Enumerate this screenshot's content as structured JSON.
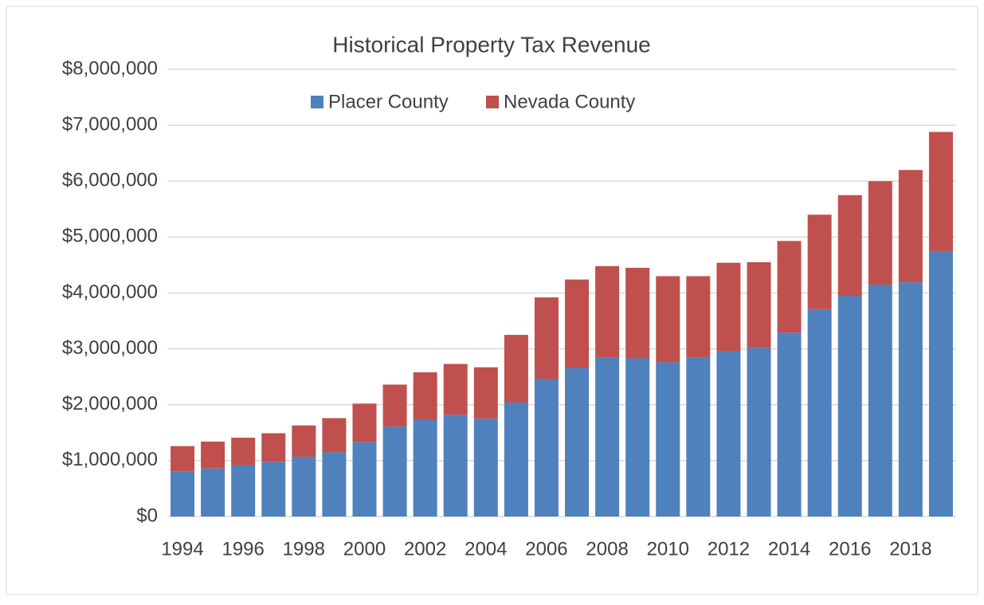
{
  "chart_data": {
    "type": "stacked-bar",
    "title": "Historical Property Tax Revenue",
    "categories": [
      "1994",
      null,
      "1996",
      null,
      "1998",
      null,
      "2000",
      null,
      "2002",
      null,
      "2004",
      null,
      "2006",
      null,
      "2008",
      null,
      "2010",
      null,
      "2012",
      null,
      "2014",
      null,
      "2016",
      null,
      "2018",
      null
    ],
    "series": [
      {
        "name": "Placer County",
        "color": "#4f81bd",
        "values": [
          810000,
          860000,
          920000,
          980000,
          1070000,
          1150000,
          1330000,
          1610000,
          1740000,
          1820000,
          1750000,
          2040000,
          2460000,
          2660000,
          2840000,
          2830000,
          2760000,
          2840000,
          2960000,
          3020000,
          3290000,
          3710000,
          3950000,
          4150000,
          4190000,
          4750000
        ]
      },
      {
        "name": "Nevada County",
        "color": "#c0504d",
        "values": [
          450000,
          480000,
          490000,
          510000,
          560000,
          610000,
          690000,
          750000,
          840000,
          910000,
          920000,
          1210000,
          1460000,
          1580000,
          1640000,
          1620000,
          1540000,
          1460000,
          1580000,
          1530000,
          1640000,
          1690000,
          1800000,
          1850000,
          2010000,
          2130000
        ]
      }
    ],
    "ylim": [
      0,
      8000000
    ],
    "yticks": [
      {
        "value": 0,
        "label": "$0"
      },
      {
        "value": 1000000,
        "label": "$1,000,000"
      },
      {
        "value": 2000000,
        "label": "$2,000,000"
      },
      {
        "value": 3000000,
        "label": "$3,000,000"
      },
      {
        "value": 4000000,
        "label": "$4,000,000"
      },
      {
        "value": 5000000,
        "label": "$5,000,000"
      },
      {
        "value": 6000000,
        "label": "$6,000,000"
      },
      {
        "value": 7000000,
        "label": "$7,000,000"
      },
      {
        "value": 8000000,
        "label": "$8,000,000"
      }
    ],
    "grid": true,
    "legend": "top"
  }
}
